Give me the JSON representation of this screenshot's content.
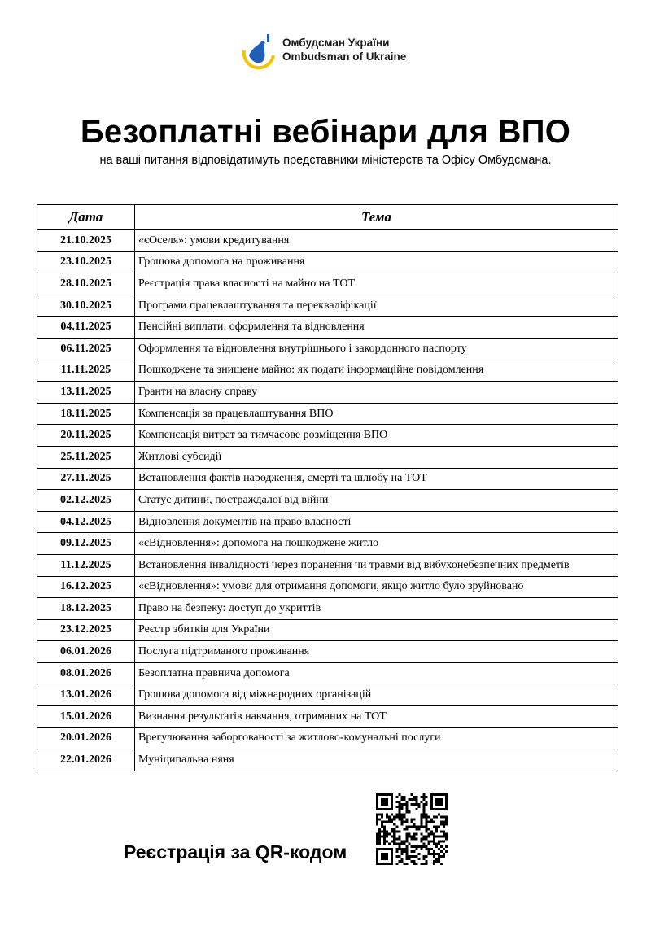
{
  "header": {
    "logo_line1": "Омбудсман України",
    "logo_line2": "Ombudsman of Ukraine",
    "title": "Безоплатні вебінари для ВПО",
    "subtitle": "на ваші питання відповідатимуть представники міністерств та Офісу Омбудсмана."
  },
  "table": {
    "columns": [
      "Дата",
      "Тема"
    ],
    "rows": [
      [
        "21.10.2025",
        "«єОселя»: умови кредитування"
      ],
      [
        "23.10.2025",
        "Грошова допомога на проживання"
      ],
      [
        "28.10.2025",
        "Реєстрація права власності на майно на ТОТ"
      ],
      [
        "30.10.2025",
        "Програми працевлаштування та перекваліфікації"
      ],
      [
        "04.11.2025",
        "Пенсійні виплати: оформлення та відновлення"
      ],
      [
        "06.11.2025",
        "Оформлення та відновлення внутрішнього і закордонного паспорту"
      ],
      [
        "11.11.2025",
        "Пошкоджене та знищене майно: як подати інформаційне повідомлення"
      ],
      [
        "13.11.2025",
        "Гранти на власну справу"
      ],
      [
        "18.11.2025",
        "Компенсація за працевлаштування ВПО"
      ],
      [
        "20.11.2025",
        "Компенсація витрат за тимчасове розміщення ВПО"
      ],
      [
        "25.11.2025",
        "Житлові субсидії"
      ],
      [
        "27.11.2025",
        "Встановлення фактів народження, смерті та шлюбу на ТОТ"
      ],
      [
        "02.12.2025",
        "Статус дитини, постраждалої від війни"
      ],
      [
        "04.12.2025",
        "Відновлення документів на право власності"
      ],
      [
        "09.12.2025",
        "«єВідновлення»: допомога на пошкоджене житло"
      ],
      [
        "11.12.2025",
        "Встановлення інвалідності через поранення чи травми від вибухонебезпечних предметів"
      ],
      [
        "16.12.2025",
        "«єВідновлення»: умови для отримання допомоги, якщо житло було зруйновано"
      ],
      [
        "18.12.2025",
        "Право на безпеку: доступ до укриттів"
      ],
      [
        "23.12.2025",
        "Реєстр збитків для України"
      ],
      [
        "06.01.2026",
        "Послуга підтриманого проживання"
      ],
      [
        "08.01.2026",
        "Безоплатна правнича допомога"
      ],
      [
        "13.01.2026",
        "Грошова допомога від міжнародних організацій"
      ],
      [
        "15.01.2026",
        "Визнання результатів навчання, отриманих на ТОТ"
      ],
      [
        "20.01.2026",
        "Врегулювання заборгованості за житлово-комунальні послуги"
      ],
      [
        "22.01.2026",
        "Муніципальна няня"
      ]
    ]
  },
  "footer": {
    "registration": "Реєстрація за QR-кодом"
  }
}
